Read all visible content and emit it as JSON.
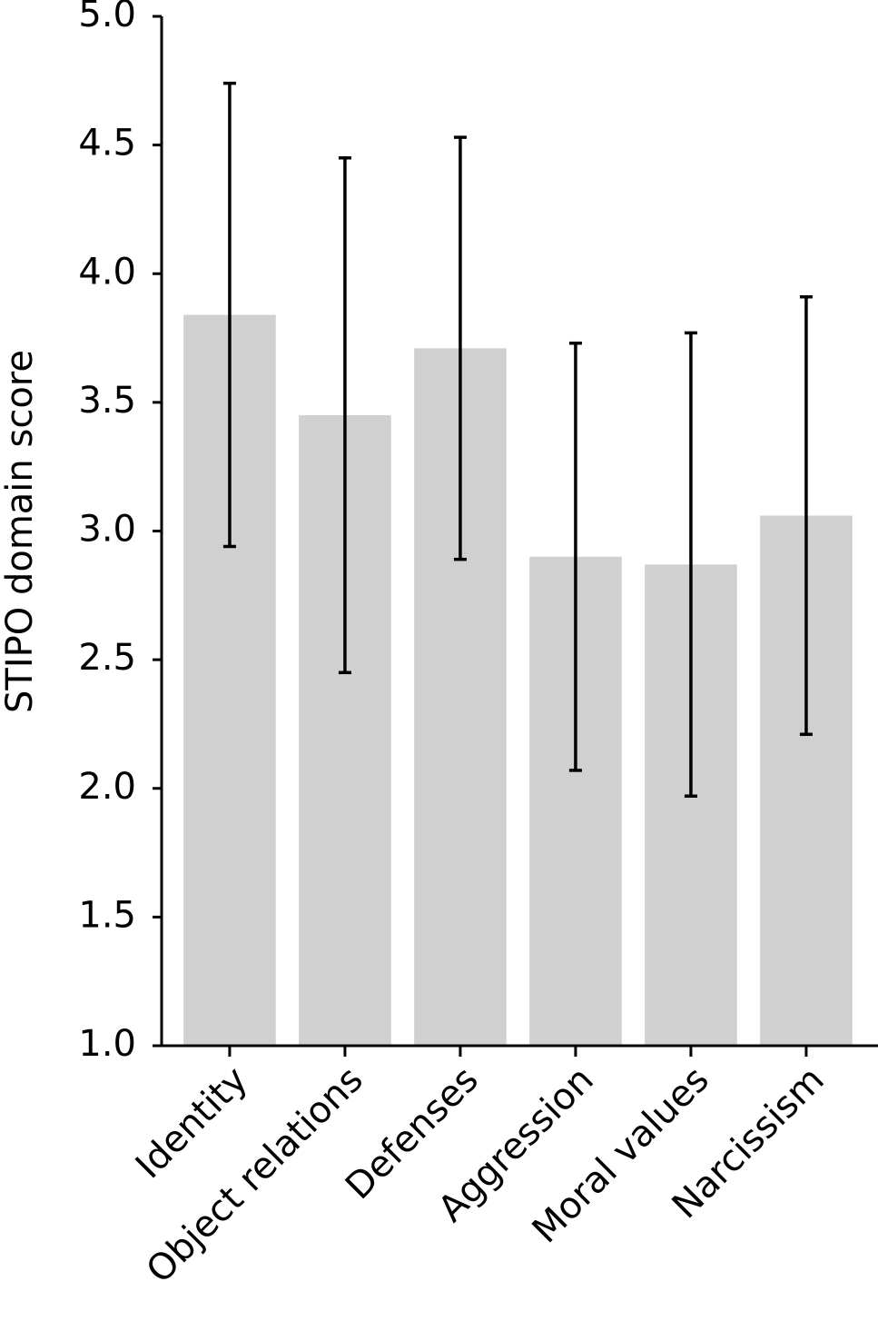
{
  "chart_data": {
    "type": "bar",
    "ylabel": "STIPO domain score",
    "categories": [
      "Identity",
      "Object relations",
      "Defenses",
      "Aggression",
      "Moral values",
      "Narcissism"
    ],
    "values": [
      3.84,
      3.45,
      3.71,
      2.9,
      2.87,
      3.06
    ],
    "errors": [
      0.9,
      1.0,
      0.82,
      0.83,
      0.9,
      0.85
    ],
    "color": "#d0d0d0",
    "error_color": "#000000",
    "ylim": [
      1.0,
      5.0
    ],
    "yticks": [
      {
        "value": 1,
        "label": "1.0"
      },
      1.5,
      {
        "value": 2,
        "label": "2.0"
      },
      2.5,
      {
        "value": 3,
        "label": "3.0"
      },
      3.5,
      {
        "value": 4,
        "label": "4.0"
      },
      4.5,
      {
        "value": 5,
        "label": "5.0"
      }
    ],
    "grid": false
  }
}
